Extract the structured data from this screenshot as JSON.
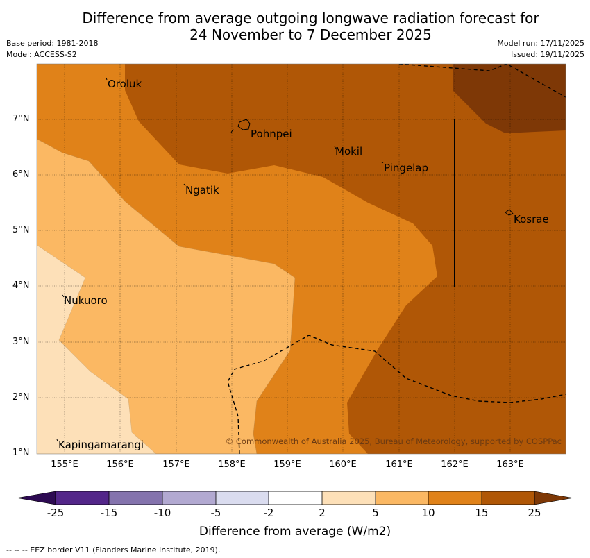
{
  "title": {
    "line1": "Difference from average outgoing longwave radiation forecast for",
    "line2": "24 November to 7 December 2025"
  },
  "meta": {
    "base_period": "Base period: 1981-2018",
    "model": "Model: ACCESS-S2",
    "model_run": "Model run: 17/11/2025",
    "issued": "Issued: 19/11/2025"
  },
  "map": {
    "lat_labels": [
      "7°N",
      "6°N",
      "5°N",
      "4°N",
      "3°N",
      "2°N",
      "1°N"
    ],
    "lon_labels": [
      "155°E",
      "156°E",
      "157°E",
      "158°E",
      "159°E",
      "160°E",
      "161°E",
      "162°E",
      "163°E"
    ],
    "places": {
      "oroluk": "Oroluk",
      "pohnpei": "Pohnpei",
      "mokil": "Mokil",
      "pingelap": "Pingelap",
      "ngatik": "Ngatik",
      "kosrae": "Kosrae",
      "nukuoro": "Nukuoro",
      "kapingamarangi": "Kapingamarangi"
    },
    "copyright": "© Commonwealth of Australia 2025, Bureau of Meteorology, supported by COSPPac"
  },
  "colorbar": {
    "title": "Difference from average (W/m2)",
    "ticks": [
      "-25",
      "-15",
      "-10",
      "-5",
      "-2",
      "2",
      "5",
      "10",
      "15",
      "25"
    ],
    "colors": {
      "lt_neg25": "#2d0a52",
      "neg25_neg15": "#532689",
      "neg15_neg10": "#8473ad",
      "neg10_neg5": "#b2a9d1",
      "neg5_neg2": "#dadcef",
      "neg2_2": "#ffffff",
      "p2_5": "#fde0b8",
      "p5_10": "#fbb863",
      "p10_15": "#e08219",
      "p15_25": "#b05706",
      "gt25": "#7e3806"
    }
  },
  "footnote": "--  --  -- EEZ border V11 (Flanders Marine Institute, 2019)."
}
